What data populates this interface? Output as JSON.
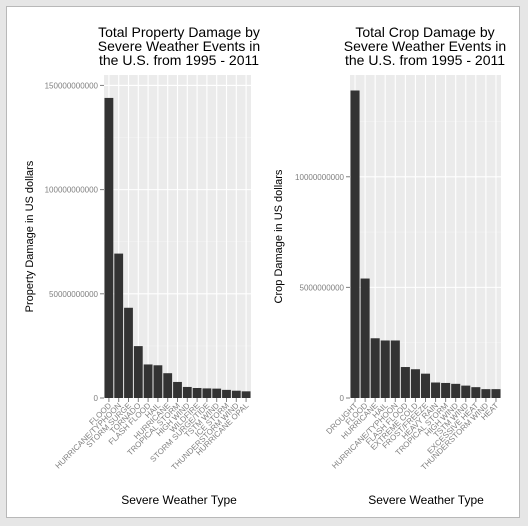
{
  "colors": {
    "panel_bg": "#ebebeb",
    "grid_major": "#ffffff",
    "grid_minor": "#f3f3f3",
    "bar_fill": "#333333",
    "tick_text": "#7f7f7f",
    "title_text": "#000000"
  },
  "chart_data": [
    {
      "type": "bar",
      "title": "Total Property Damage by\nSevere Weather Events in\nthe U.S. from 1995 - 2011",
      "xlabel": "Severe Weather Type",
      "ylabel": "Property Damage in US dollars",
      "ylim": [
        0,
        155000000000
      ],
      "yticks": [
        0,
        50000000000,
        100000000000,
        150000000000
      ],
      "ytick_labels": [
        "0",
        "50000000000",
        "100000000000",
        "150000000000"
      ],
      "grid": true,
      "categories": [
        "FLOOD",
        "HURRICANE/TYPHOON",
        "STORM SURGE",
        "TORNADO",
        "FLASH FLOOD",
        "HAIL",
        "HURRICANE",
        "TROPICAL STORM",
        "HIGH WIND",
        "WILDFIRE",
        "STORM SURGE/TIDE",
        "TSTM WIND",
        "ICE STORM",
        "THUNDERSTORM WIND",
        "HURRICANE OPAL"
      ],
      "values": [
        144000000000,
        69300000000,
        43300000000,
        24900000000,
        16100000000,
        15700000000,
        11900000000,
        7700000000,
        5300000000,
        4800000000,
        4600000000,
        4500000000,
        3900000000,
        3500000000,
        3200000000
      ]
    },
    {
      "type": "bar",
      "title": "Total Crop Damage by\nSevere Weather Events in\nthe U.S. from 1995 - 2011",
      "xlabel": "Severe Weather Type",
      "ylabel": "Crop Damage in US dollars",
      "ylim": [
        0,
        14600000000
      ],
      "yticks": [
        0,
        5000000000,
        10000000000
      ],
      "ytick_labels": [
        "0",
        "5000000000",
        "10000000000"
      ],
      "grid": true,
      "categories": [
        "DROUGHT",
        "FLOOD",
        "HURRICANE",
        "HAIL",
        "HURRICANE/TYPHOON",
        "FLASH FLOOD",
        "EXTREME COLD",
        "FROST/FREEZE",
        "HEAVY RAIN",
        "TROPICAL STORM",
        "HIGH WIND",
        "TSTM WIND",
        "EXCESSIVE HEAT",
        "THUNDERSTORM WIND",
        "HEAT"
      ],
      "values": [
        13900000000,
        5400000000,
        2700000000,
        2600000000,
        2600000000,
        1400000000,
        1300000000,
        1100000000,
        700000000,
        680000000,
        640000000,
        560000000,
        490000000,
        400000000,
        400000000
      ]
    }
  ]
}
